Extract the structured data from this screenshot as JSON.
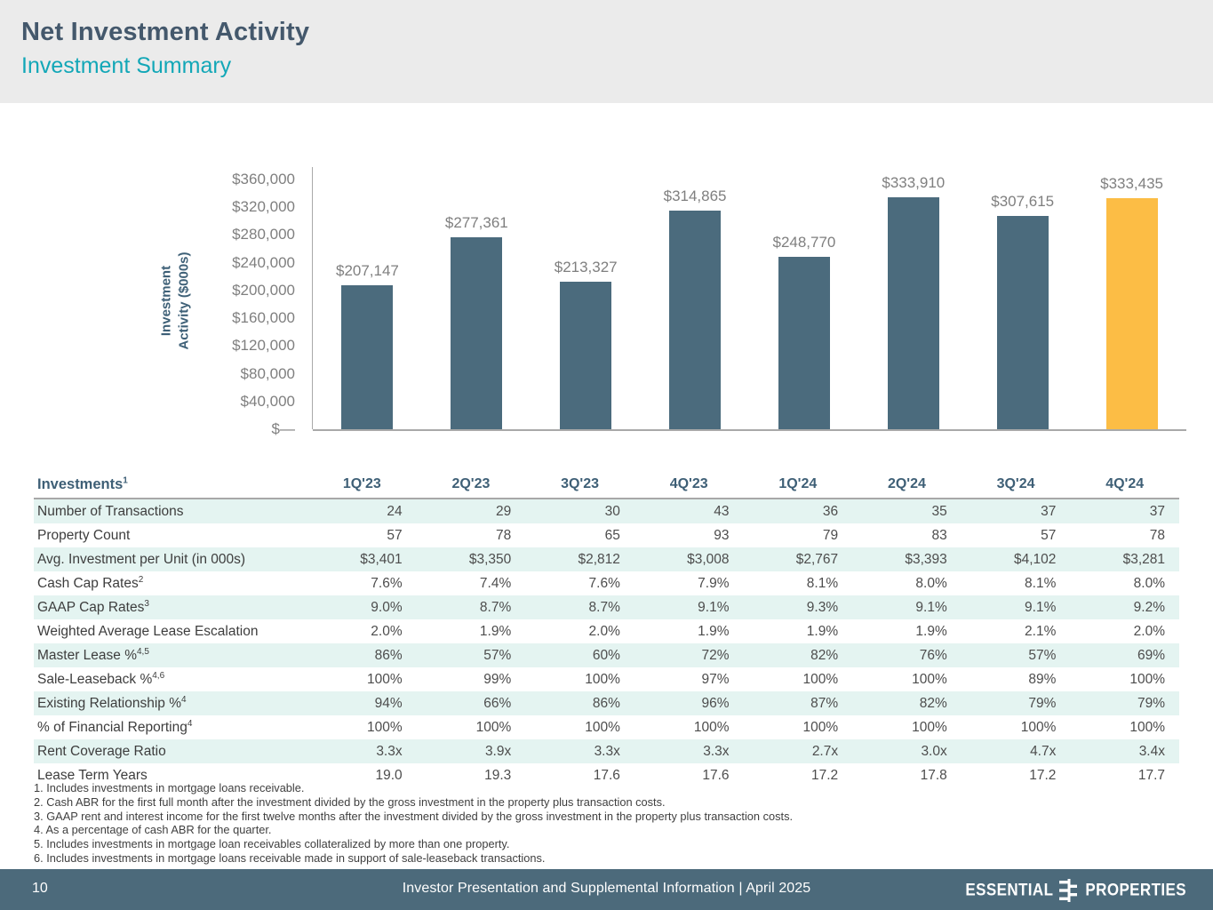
{
  "slide": {
    "title": "Net Investment Activity",
    "subtitle": "Investment Summary"
  },
  "chart_data": {
    "type": "bar",
    "title": "",
    "xlabel": "",
    "ylabel_line1": "Investment",
    "ylabel_line2": "Activity ($000s)",
    "categories": [
      "1Q'23",
      "2Q'23",
      "3Q'23",
      "4Q'23",
      "1Q'24",
      "2Q'24",
      "3Q'24",
      "4Q'24"
    ],
    "values": [
      207147,
      277361,
      213327,
      314865,
      248770,
      333910,
      307615,
      333435
    ],
    "labels": [
      "$207,147",
      "$277,361",
      "$213,327",
      "$314,865",
      "$248,770",
      "$333,910",
      "$307,615",
      "$333,435"
    ],
    "ylim": [
      0,
      360000
    ],
    "yticks": [
      "$360,000",
      "$320,000",
      "$280,000",
      "$240,000",
      "$200,000",
      "$160,000",
      "$120,000",
      "$80,000",
      "$40,000",
      "$—"
    ],
    "grid": "off",
    "legend": "none",
    "highlight_index": 7,
    "colors": {
      "bar": "#4b6b7d",
      "highlight": "#fcbd45"
    }
  },
  "table": {
    "corner_label": "Investments",
    "corner_sup": "1",
    "columns": [
      "1Q'23",
      "2Q'23",
      "3Q'23",
      "4Q'23",
      "1Q'24",
      "2Q'24",
      "3Q'24",
      "4Q'24"
    ],
    "rows": [
      {
        "label": "Number of Transactions",
        "sup": "",
        "values": [
          "24",
          "29",
          "30",
          "43",
          "36",
          "35",
          "37",
          "37"
        ]
      },
      {
        "label": "Property Count",
        "sup": "",
        "values": [
          "57",
          "78",
          "65",
          "93",
          "79",
          "83",
          "57",
          "78"
        ]
      },
      {
        "label": "Avg. Investment per Unit (in 000s)",
        "sup": "",
        "values": [
          "$3,401",
          "$3,350",
          "$2,812",
          "$3,008",
          "$2,767",
          "$3,393",
          "$4,102",
          "$3,281"
        ]
      },
      {
        "label": "Cash Cap Rates",
        "sup": "2",
        "values": [
          "7.6%",
          "7.4%",
          "7.6%",
          "7.9%",
          "8.1%",
          "8.0%",
          "8.1%",
          "8.0%"
        ]
      },
      {
        "label": "GAAP Cap Rates",
        "sup": "3",
        "values": [
          "9.0%",
          "8.7%",
          "8.7%",
          "9.1%",
          "9.3%",
          "9.1%",
          "9.1%",
          "9.2%"
        ]
      },
      {
        "label": "Weighted Average Lease Escalation",
        "sup": "",
        "values": [
          "2.0%",
          "1.9%",
          "2.0%",
          "1.9%",
          "1.9%",
          "1.9%",
          "2.1%",
          "2.0%"
        ]
      },
      {
        "label": "Master Lease %",
        "sup": "4,5",
        "values": [
          "86%",
          "57%",
          "60%",
          "72%",
          "82%",
          "76%",
          "57%",
          "69%"
        ]
      },
      {
        "label": "Sale-Leaseback %",
        "sup": "4,6",
        "values": [
          "100%",
          "99%",
          "100%",
          "97%",
          "100%",
          "100%",
          "89%",
          "100%"
        ]
      },
      {
        "label": "Existing Relationship %",
        "sup": "4",
        "values": [
          "94%",
          "66%",
          "86%",
          "96%",
          "87%",
          "82%",
          "79%",
          "79%"
        ]
      },
      {
        "label": "% of Financial Reporting",
        "sup": "4",
        "values": [
          "100%",
          "100%",
          "100%",
          "100%",
          "100%",
          "100%",
          "100%",
          "100%"
        ]
      },
      {
        "label": "Rent Coverage Ratio",
        "sup": "",
        "values": [
          "3.3x",
          "3.9x",
          "3.3x",
          "3.3x",
          "2.7x",
          "3.0x",
          "4.7x",
          "3.4x"
        ]
      },
      {
        "label": "Lease Term Years",
        "sup": "",
        "values": [
          "19.0",
          "19.3",
          "17.6",
          "17.6",
          "17.2",
          "17.8",
          "17.2",
          "17.7"
        ]
      }
    ]
  },
  "footnotes": [
    "Includes investments in mortgage loans receivable.",
    "Cash ABR for the first full month after the investment divided by the gross investment in the property plus transaction costs.",
    "GAAP rent and interest income for the first twelve months after the investment divided by the gross investment in the property plus transaction costs.",
    "As a percentage of cash ABR for the quarter.",
    "Includes investments in mortgage loan receivables collateralized by more than one property.",
    "Includes investments in mortgage loans receivable made in support of sale-leaseback transactions."
  ],
  "footer": {
    "page_number": "10",
    "center_text": "Investor Presentation and Supplemental Information |  April 2025",
    "logo_left": "ESSENTIAL",
    "logo_right": "PROPERTIES"
  }
}
